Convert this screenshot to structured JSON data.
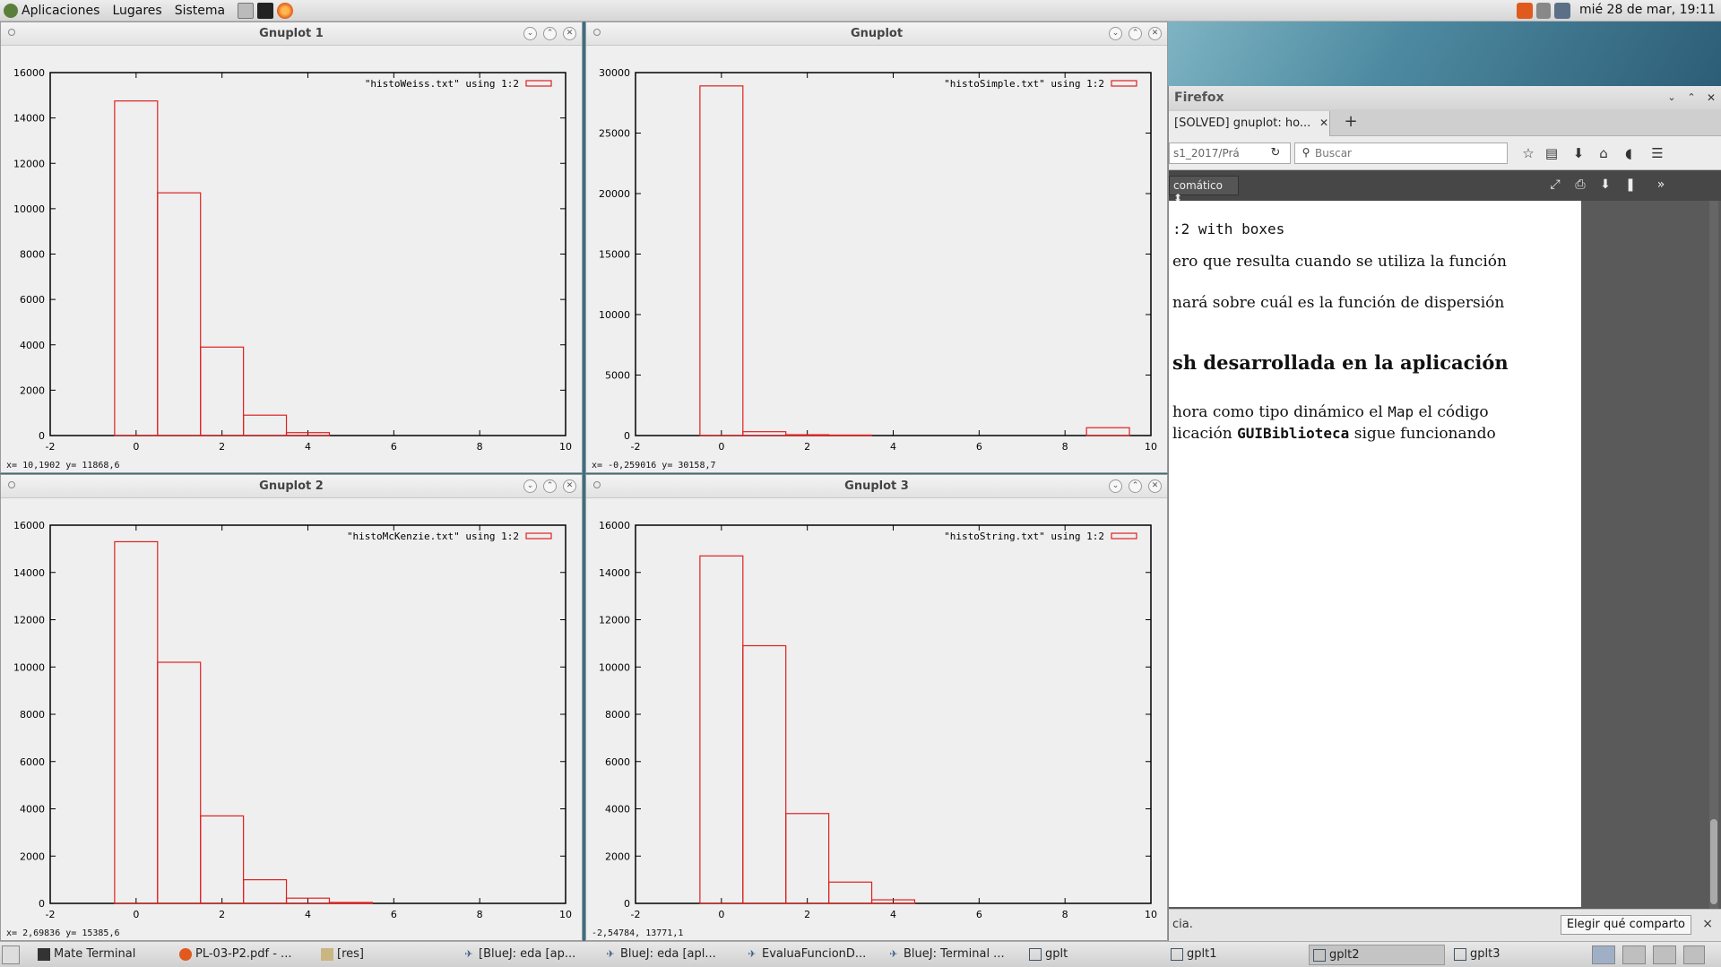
{
  "top_panel": {
    "menus": [
      "Aplicaciones",
      "Lugares",
      "Sistema"
    ],
    "clock": "mié 28 de mar, 19:11"
  },
  "gnuplot_windows": [
    {
      "title": "Gnuplot 1",
      "status": {
        "x_label": "x=",
        "x": "10,1902",
        "y_label": "y=",
        "y": "11868,6"
      },
      "chart_data": {
        "type": "bar",
        "legend": "\"histoWeiss.txt\" using 1:2",
        "legend_position": "top-right",
        "xlim": [
          -2,
          10
        ],
        "ylim": [
          0,
          16000
        ],
        "xticks": [
          "-2",
          "0",
          "2",
          "4",
          "6",
          "8",
          "10"
        ],
        "yticks": [
          "0",
          "2000",
          "4000",
          "6000",
          "8000",
          "10000",
          "12000",
          "14000",
          "16000"
        ],
        "x": [
          0,
          1,
          2,
          3,
          4
        ],
        "values": [
          14750,
          10700,
          3900,
          900,
          130
        ],
        "color": "#e02020"
      }
    },
    {
      "title": "Gnuplot",
      "status": {
        "x_label": "x=",
        "x": "-0,259016",
        "y_label": "y=",
        "y": "30158,7"
      },
      "chart_data": {
        "type": "bar",
        "legend": "\"histoSimple.txt\" using 1:2",
        "legend_position": "top-right",
        "xlim": [
          -2,
          10
        ],
        "ylim": [
          0,
          30000
        ],
        "xticks": [
          "-2",
          "0",
          "2",
          "4",
          "6",
          "8",
          "10"
        ],
        "yticks": [
          "0",
          "5000",
          "10000",
          "15000",
          "20000",
          "25000",
          "30000"
        ],
        "x": [
          0,
          1,
          2,
          3,
          9
        ],
        "values": [
          28900,
          320,
          70,
          40,
          650
        ],
        "color": "#e02020"
      }
    },
    {
      "title": "Gnuplot 2",
      "status": {
        "x_label": "x=",
        "x": "2,69836",
        "y_label": "y=",
        "y": "15385,6"
      },
      "chart_data": {
        "type": "bar",
        "legend": "\"histoMcKenzie.txt\" using 1:2",
        "legend_position": "top-right",
        "xlim": [
          -2,
          10
        ],
        "ylim": [
          0,
          16000
        ],
        "xticks": [
          "-2",
          "0",
          "2",
          "4",
          "6",
          "8",
          "10"
        ],
        "yticks": [
          "0",
          "2000",
          "4000",
          "6000",
          "8000",
          "10000",
          "12000",
          "14000",
          "16000"
        ],
        "x": [
          0,
          1,
          2,
          3,
          4,
          5
        ],
        "values": [
          15300,
          10200,
          3700,
          1000,
          220,
          40
        ],
        "color": "#e02020"
      }
    },
    {
      "title": "Gnuplot 3",
      "status": {
        "x_label": "",
        "x": "-2,54784,",
        "y_label": "",
        "y": "13771,1"
      },
      "chart_data": {
        "type": "bar",
        "legend": "\"histoString.txt\" using 1:2",
        "legend_position": "top-right",
        "xlim": [
          -2,
          10
        ],
        "ylim": [
          0,
          16000
        ],
        "xticks": [
          "-2",
          "0",
          "2",
          "4",
          "6",
          "8",
          "10"
        ],
        "yticks": [
          "0",
          "2000",
          "4000",
          "6000",
          "8000",
          "10000",
          "12000",
          "14000",
          "16000"
        ],
        "x": [
          0,
          1,
          2,
          3,
          4
        ],
        "values": [
          14700,
          10900,
          3800,
          900,
          150
        ],
        "color": "#e02020"
      }
    }
  ],
  "firefox": {
    "title": "Firefox",
    "tab_label": "[SOLVED] gnuplot: ho...",
    "url_fragment": "s1_2017/Prá",
    "search_placeholder": "Buscar",
    "zoom_label": "comático",
    "pdf_lines": [
      ":2 with boxes",
      "ero que resulta cuando se utiliza la función",
      "nará sobre cuál es la función de dispersión",
      "sh desarrollada en la aplicación",
      "hora como tipo dinámico el ",
      "Map",
      " el código",
      "licación ",
      "GUIBiblioteca",
      " sigue funcionando"
    ],
    "notification": {
      "message": "cia.",
      "share_button": "Elegir qué comparto",
      "close": "×"
    }
  },
  "taskbar": {
    "tasks": [
      "Mate Terminal",
      "PL-03-P2.pdf - ...",
      "[res]",
      "[BlueJ:  eda  [ap...",
      "BlueJ:  eda  [apl...",
      "EvaluaFuncionD...",
      "BlueJ: Terminal ...",
      "gplt",
      "gplt1",
      "gplt2",
      "gplt3"
    ]
  }
}
